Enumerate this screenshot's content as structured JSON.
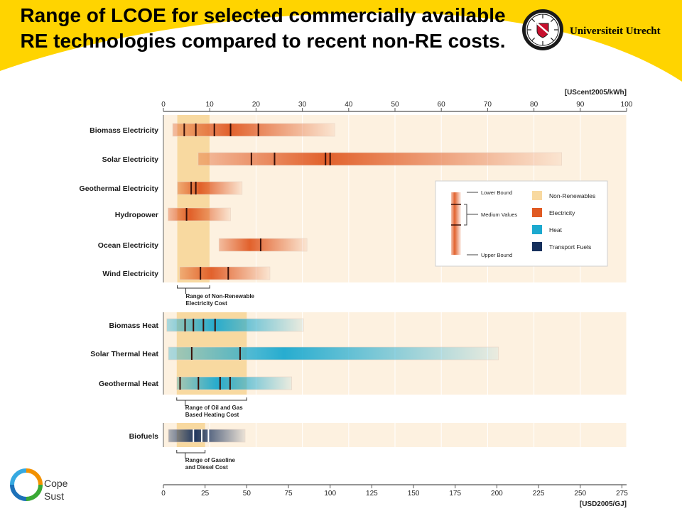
{
  "header": {
    "title": "Range of LCOE for selected commercially available RE technologies compared to recent non-RE costs.",
    "university": "Universiteit Utrecht"
  },
  "footer": {
    "line1": "Cope",
    "line2": "Sust"
  },
  "colors": {
    "banner_yellow": "#ffd400",
    "non_renewables": "#f8d9a0",
    "electricity": "#e05a23",
    "heat": "#1ca9cf",
    "transport_fuels": "#16305c",
    "plot_bg": "#fdf1e0"
  },
  "chart_data": {
    "type": "bar",
    "top_axis": {
      "label": "[UScent2005/kWh]",
      "ticks": [
        0,
        10,
        20,
        30,
        40,
        50,
        60,
        70,
        80,
        90,
        100
      ],
      "range": [
        0,
        100
      ]
    },
    "bottom_axis": {
      "label": "[USD2005/GJ]",
      "ticks": [
        0,
        25,
        50,
        75,
        100,
        125,
        150,
        175,
        200,
        225,
        250,
        275
      ],
      "range": [
        0,
        277.8
      ]
    },
    "legend": {
      "placement": "right-center",
      "bound_labels": [
        "Lower Bound",
        "Medium Values",
        "Upper Bound"
      ],
      "items": [
        {
          "label": "Non-Renewables",
          "type": "non_renewables"
        },
        {
          "label": "Electricity",
          "type": "electricity"
        },
        {
          "label": "Heat",
          "type": "heat"
        },
        {
          "label": "Transport Fuels",
          "type": "transport"
        }
      ]
    },
    "groups": [
      {
        "name": "electricity",
        "unit": "UScent2005/kWh",
        "non_re_range": [
          3,
          10
        ],
        "range_label": [
          "Range of Non-Renewable",
          "Electricity Cost"
        ],
        "rows": [
          {
            "label": "Biomass Electricity",
            "low": 2,
            "high": 37,
            "medians": [
              4.5,
              7,
              11,
              14.5,
              20.5
            ]
          },
          {
            "label": "Solar Electricity",
            "low": 7.5,
            "high": 86,
            "medians": [
              19,
              24,
              35,
              36
            ]
          },
          {
            "label": "Geothermal Electricity",
            "low": 3,
            "high": 17,
            "medians": [
              6,
              7
            ]
          },
          {
            "label": "Hydropower",
            "low": 1,
            "high": 14.5,
            "medians": [
              5
            ]
          },
          {
            "label": "Ocean Electricity",
            "low": 12,
            "high": 31,
            "medians": [
              21
            ]
          },
          {
            "label": "Wind Electricity",
            "low": 3.5,
            "high": 23,
            "medians": [
              8,
              14
            ]
          }
        ]
      },
      {
        "name": "heat",
        "unit": "USD2005/GJ",
        "non_re_range": [
          8,
          50
        ],
        "range_label": [
          "Range of Oil and Gas",
          "Based Heating Cost"
        ],
        "rows": [
          {
            "label": "Biomass Heat",
            "low": 2,
            "high": 84,
            "medians": [
              13,
              18,
              24,
              31
            ]
          },
          {
            "label": "Solar Thermal Heat",
            "low": 3,
            "high": 201,
            "medians": [
              17,
              46
            ]
          },
          {
            "label": "Geothermal Heat",
            "low": 8,
            "high": 77,
            "medians": [
              10,
              21,
              34,
              40
            ]
          }
        ]
      },
      {
        "name": "transport",
        "unit": "USD2005/GJ",
        "non_re_range": [
          8,
          25
        ],
        "range_label": [
          "Range of Gasoline",
          "and Diesel Cost"
        ],
        "rows": [
          {
            "label": "Biofuels",
            "low": 3,
            "high": 49,
            "medians": [
              18,
              23,
              27
            ]
          }
        ]
      }
    ]
  }
}
